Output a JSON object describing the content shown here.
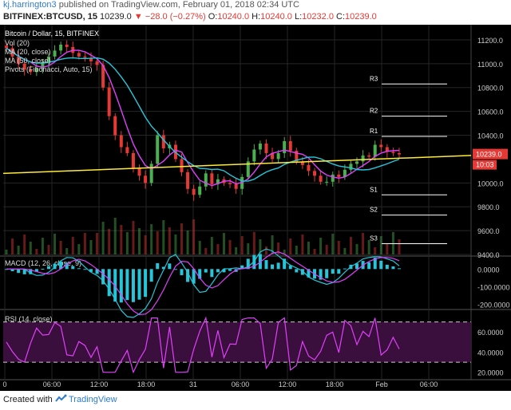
{
  "header": {
    "author": "kj.harrington3",
    "published_text": "published on TradingView.com, February 01, 2018 02:34 UTC",
    "symbol_line": "BITFINEX:BTCUSD, 15",
    "last": "10239.0",
    "change": "▼ −28.0 (−0.27%)",
    "o_label": "O:",
    "o_val": "10240.0",
    "h_label": "H:",
    "h_val": "10240.0",
    "l_label": "L:",
    "l_val": "10232.0",
    "c_label": "C:",
    "c_val": "10239.0"
  },
  "footer": {
    "created_with": "Created with",
    "brand": "TradingView"
  },
  "colors": {
    "background": "#000000",
    "up": "#4caf50",
    "down": "#e53935",
    "ma20": "#e040fb",
    "ma50": "#26c6da",
    "trend": "#ffeb3b",
    "pivot": "#ffffff",
    "rsi": "#e040fb",
    "rsi_band": "#3b0f3d",
    "grid": "#262626",
    "price_badge": "#e53935"
  },
  "chart_data": {
    "type": "candlestick",
    "title": "Bitcoin / Dollar, 15, BITFINEX",
    "legend": [
      "Vol (20)",
      "MA (20, close)",
      "MA (50, close)",
      "Pivots (Fibonacci, Auto, 15)"
    ],
    "y_ticks": [
      "11200.0",
      "11000.0",
      "10800.0",
      "10600.0",
      "10400.0",
      "10000.0",
      "9800.0",
      "9600.0",
      "9400.0"
    ],
    "ylim": [
      9400,
      11300
    ],
    "x_ticks": [
      "0",
      "06:00",
      "12:00",
      "18:00",
      "31",
      "06:00",
      "12:00",
      "18:00",
      "Feb",
      "06:00"
    ],
    "last_price": "10239.0",
    "countdown": "10:03",
    "pivots": [
      {
        "label": "R3",
        "value": 10830
      },
      {
        "label": "R2",
        "value": 10560
      },
      {
        "label": "R1",
        "value": 10390
      },
      {
        "label": "S1",
        "value": 9900
      },
      {
        "label": "S2",
        "value": 9730
      },
      {
        "label": "S3",
        "value": 9490
      }
    ],
    "trendline": {
      "from": 10080,
      "to": 10230
    },
    "close_series": [
      11130,
      11060,
      11000,
      10950,
      10930,
      10960,
      11010,
      11060,
      11110,
      11160,
      11140,
      11090,
      11060,
      11050,
      11020,
      10990,
      10800,
      10560,
      10400,
      10300,
      10250,
      10120,
      10060,
      10000,
      10160,
      10400,
      10290,
      10320,
      10200,
      10090,
      9950,
      9900,
      9970,
      10080,
      9990,
      10030,
      10000,
      9990,
      9950,
      10050,
      10180,
      10280,
      10330,
      10250,
      10200,
      10250,
      10350,
      10270,
      10180,
      10150,
      10100,
      10060,
      10010,
      10010,
      10070,
      10050,
      10110,
      10160,
      10180,
      10230,
      10220,
      10320,
      10300,
      10260,
      10250,
      10239
    ],
    "macd": {
      "title": "MACD (12, 26, close, 9)",
      "y_ticks": [
        "0.0000",
        "-100.0000",
        "-200.0000"
      ],
      "ylim": [
        -220,
        60
      ]
    },
    "rsi": {
      "title": "RSI (14, close)",
      "y_ticks": [
        "60.0000",
        "40.0000",
        "20.0000"
      ],
      "ylim": [
        15,
        80
      ],
      "bands": [
        70,
        30
      ]
    }
  }
}
